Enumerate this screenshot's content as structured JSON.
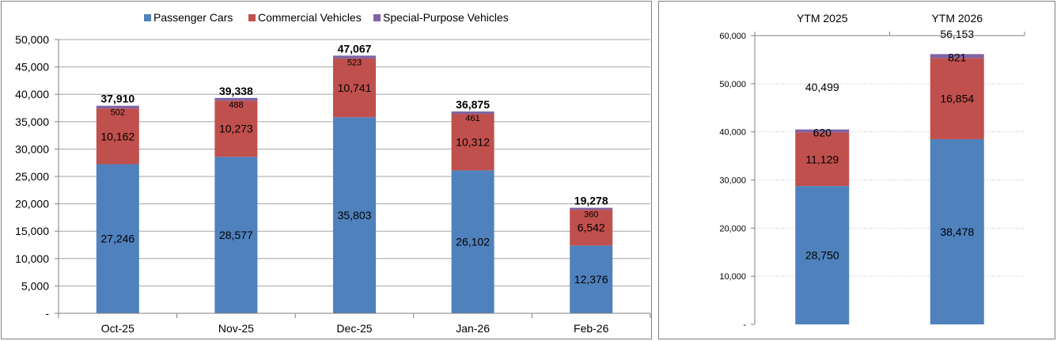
{
  "legend": {
    "passenger": "Passenger Cars",
    "commercial": "Commercial Vehicles",
    "special": "Special-Purpose Vehicles"
  },
  "colors": {
    "passenger": "#4f81bd",
    "commercial": "#c0504d",
    "special": "#8064a2",
    "grid": "#a6a6a6",
    "axis": "#7f7f7f"
  },
  "chart_data": [
    {
      "type": "bar",
      "stacked": true,
      "categories": [
        "Oct-25",
        "Nov-25",
        "Dec-25",
        "Jan-26",
        "Feb-26"
      ],
      "series": [
        {
          "name": "Passenger Cars",
          "values": [
            27246,
            28577,
            35803,
            26102,
            12376
          ],
          "labels": [
            "27,246",
            "28,577",
            "35,803",
            "26,102",
            "12,376"
          ]
        },
        {
          "name": "Commercial Vehicles",
          "values": [
            10162,
            10273,
            10741,
            10312,
            6542
          ],
          "labels": [
            "10,162",
            "10,273",
            "10,741",
            "10,312",
            "6,542"
          ]
        },
        {
          "name": "Special-Purpose Vehicles",
          "values": [
            502,
            488,
            523,
            461,
            360
          ],
          "labels": [
            "502",
            "488",
            "523",
            "461",
            "360"
          ]
        }
      ],
      "totals": [
        37910,
        39338,
        47067,
        36875,
        19278
      ],
      "total_labels": [
        "37,910",
        "39,338",
        "47,067",
        "36,875",
        "19,278"
      ],
      "ylim": [
        0,
        50000
      ],
      "yticks": [
        0,
        5000,
        10000,
        15000,
        20000,
        25000,
        30000,
        35000,
        40000,
        45000,
        50000
      ],
      "ytick_labels": [
        "-",
        "5,000",
        "10,000",
        "15,000",
        "20,000",
        "25,000",
        "30,000",
        "35,000",
        "40,000",
        "45,000",
        "50,000"
      ],
      "grid": true,
      "legend_position": "top"
    },
    {
      "type": "bar",
      "stacked": true,
      "categories": [
        "YTM 2025",
        "YTM 2026"
      ],
      "series": [
        {
          "name": "Passenger Cars",
          "values": [
            28750,
            38478
          ],
          "labels": [
            "28,750",
            "38,478"
          ]
        },
        {
          "name": "Commercial Vehicles",
          "values": [
            11129,
            16854
          ],
          "labels": [
            "11,129",
            "16,854"
          ]
        },
        {
          "name": "Special-Purpose Vehicles",
          "values": [
            620,
            821
          ],
          "labels": [
            "620",
            "821"
          ]
        }
      ],
      "totals": [
        40499,
        56153
      ],
      "total_labels": [
        "40,499",
        "56,153"
      ],
      "ylim": [
        0,
        60000
      ],
      "yticks": [
        0,
        10000,
        20000,
        30000,
        40000,
        50000,
        60000
      ],
      "ytick_labels": [
        "-",
        "10,000",
        "20,000",
        "30,000",
        "40,000",
        "50,000",
        "60,000"
      ],
      "grid": true,
      "xaxis_position": "top"
    }
  ]
}
